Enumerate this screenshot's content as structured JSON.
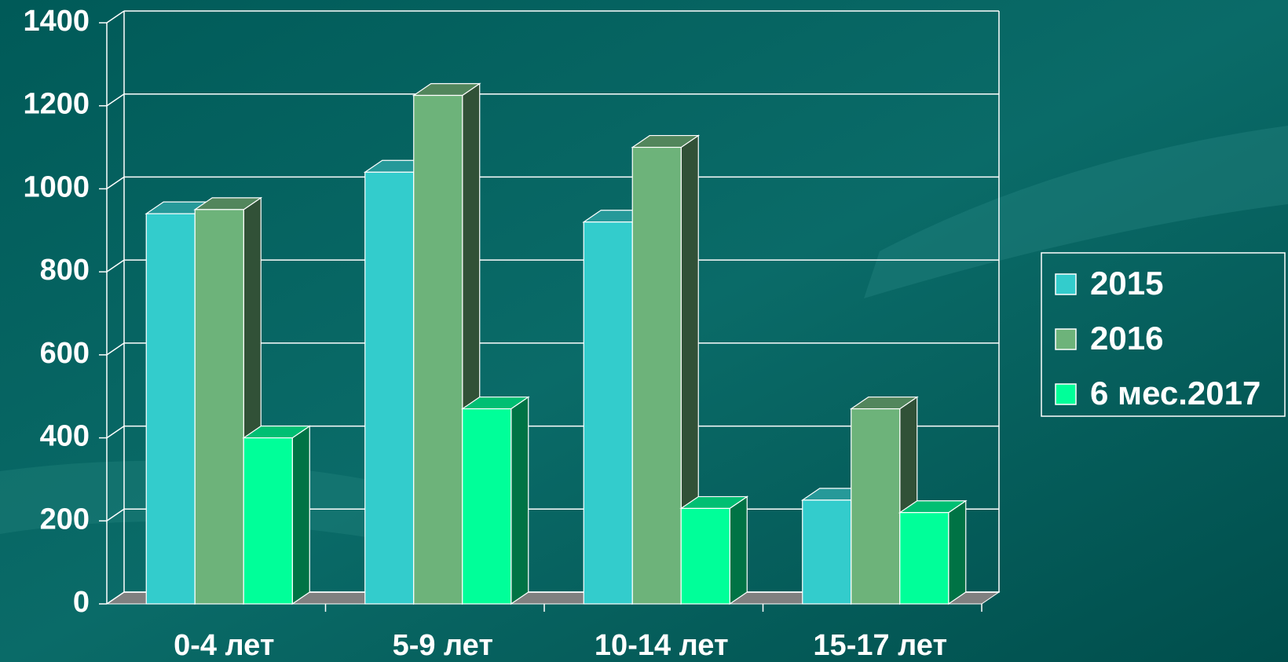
{
  "chart_data": {
    "type": "bar",
    "categories": [
      "0-4 лет",
      "5-9 лет",
      "10-14 лет",
      "15-17 лет"
    ],
    "series": [
      {
        "name": "2015",
        "color": "#33cccc",
        "values": [
          940,
          1040,
          920,
          250
        ]
      },
      {
        "name": "2016",
        "color": "#6db37a",
        "values": [
          950,
          1225,
          1100,
          470
        ]
      },
      {
        "name": "6 мес.2017",
        "color": "#00ff99",
        "values": [
          400,
          470,
          230,
          220
        ]
      }
    ],
    "ylim": [
      0,
      1400
    ],
    "yticks": [
      0,
      200,
      400,
      600,
      800,
      1000,
      1200,
      1400
    ],
    "grid": true,
    "legend": "right"
  }
}
